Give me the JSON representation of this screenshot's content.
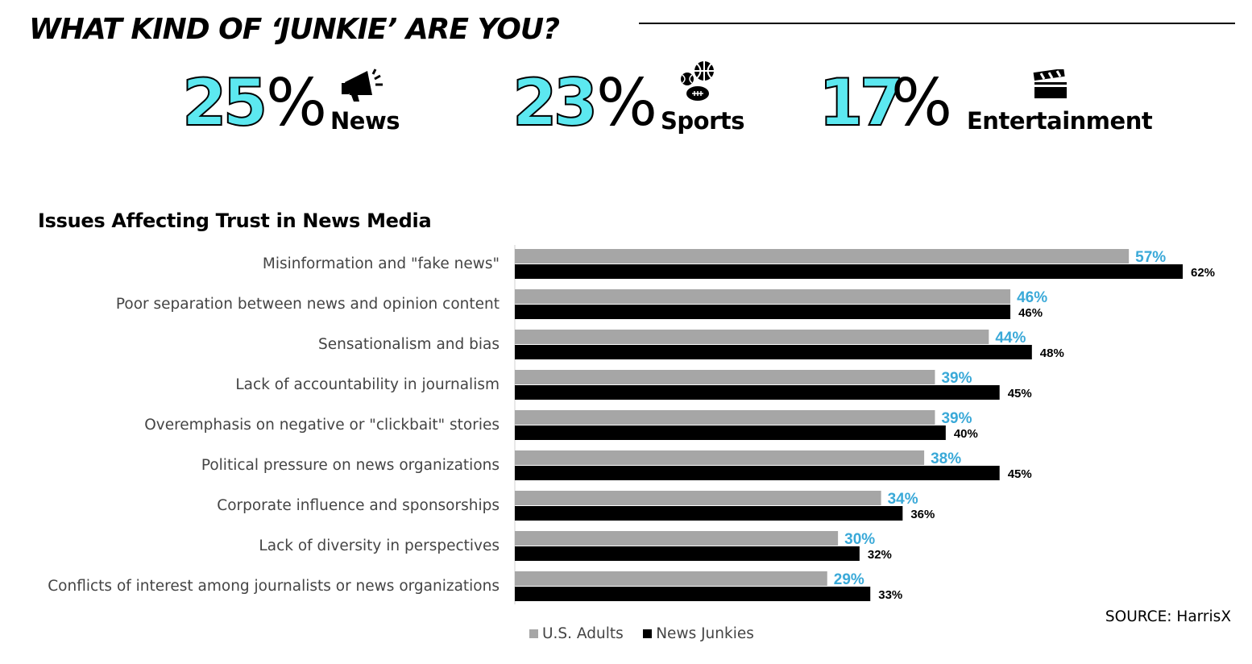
{
  "headline": "WHAT KIND OF ‘JUNKIE’ ARE YOU?",
  "stats": [
    {
      "number": "25",
      "pct": "%",
      "label": "News",
      "icon": "megaphone-icon"
    },
    {
      "number": "23",
      "pct": "%",
      "label": "Sports",
      "icon": "sports-balls-icon"
    },
    {
      "number": "17",
      "pct": "%",
      "label": "Entertainment",
      "icon": "clapperboard-icon"
    }
  ],
  "colors": {
    "accent": "#5ce8f0",
    "adults": "#a6a6a6",
    "junkies": "#000000",
    "adults_label": "#3aa9d8"
  },
  "chart_data": {
    "type": "bar",
    "orientation": "horizontal",
    "title": "Issues Affecting Trust in News Media",
    "categories": [
      "Misinformation and \"fake news\"",
      "Poor separation between news and opinion content",
      "Sensationalism and bias",
      "Lack of accountability in journalism",
      "Overemphasis on negative or \"clickbait\" stories",
      "Political pressure on news organizations",
      "Corporate influence and sponsorships",
      "Lack of diversity in perspectives",
      "Conflicts of interest among journalists or news organizations"
    ],
    "series": [
      {
        "name": "U.S. Adults",
        "color": "#a6a6a6",
        "values": [
          57,
          46,
          44,
          39,
          39,
          38,
          34,
          30,
          29
        ],
        "labels": [
          "57%",
          "46%",
          "44%",
          "39%",
          "39%",
          "38%",
          "34%",
          "30%",
          "29%"
        ]
      },
      {
        "name": "News Junkies",
        "color": "#000000",
        "values": [
          62,
          46,
          48,
          45,
          40,
          45,
          36,
          32,
          33
        ],
        "labels": [
          "62%",
          "46%",
          "48%",
          "45%",
          "40%",
          "45%",
          "36%",
          "32%",
          "33%"
        ]
      }
    ],
    "xlim": [
      0,
      100
    ],
    "grid": false,
    "legend": "bottom-left"
  },
  "source": "SOURCE: HarrisX"
}
